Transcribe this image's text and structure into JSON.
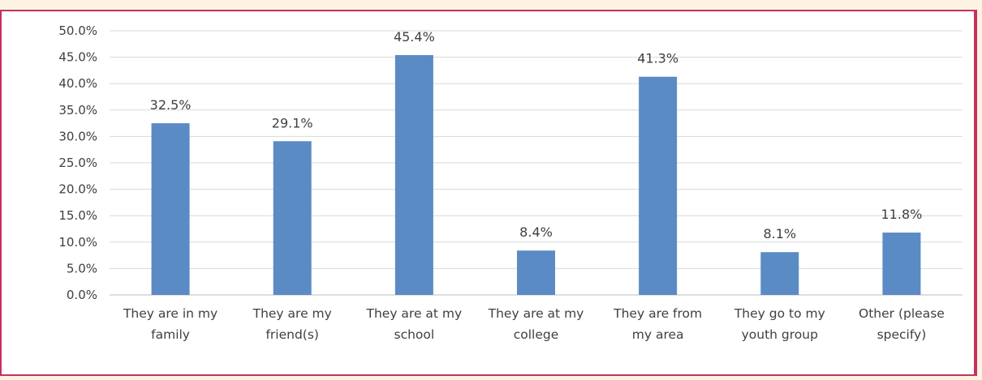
{
  "chart_data": {
    "type": "bar",
    "categories": [
      [
        "They are in my",
        "family"
      ],
      [
        "They are my",
        "friend(s)"
      ],
      [
        "They are at my",
        "school"
      ],
      [
        "They are at my",
        "college"
      ],
      [
        "They are from",
        "my area"
      ],
      [
        "They go to my",
        "youth group"
      ],
      [
        "Other (please",
        "specify)"
      ]
    ],
    "values": [
      32.5,
      29.1,
      45.4,
      8.4,
      41.3,
      8.1,
      11.8
    ],
    "data_labels": [
      "32.5%",
      "29.1%",
      "45.4%",
      "8.4%",
      "41.3%",
      "8.1%",
      "11.8%"
    ],
    "yticks": [
      "0.0%",
      "5.0%",
      "10.0%",
      "15.0%",
      "20.0%",
      "25.0%",
      "30.0%",
      "35.0%",
      "40.0%",
      "45.0%",
      "50.0%"
    ],
    "ylim": [
      0,
      50
    ],
    "grid": true,
    "bar_color": "#5b8bc5",
    "grid_color": "#d9d9d9",
    "border_color": "#c5325c"
  }
}
